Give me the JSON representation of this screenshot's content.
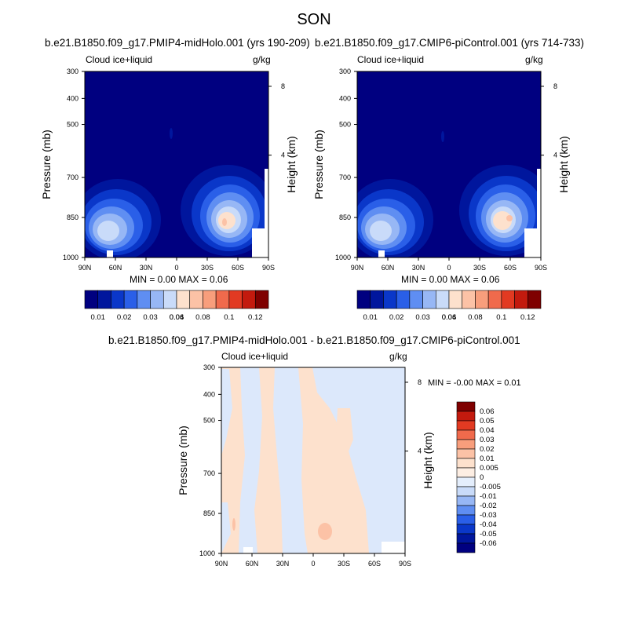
{
  "title": "SON",
  "panel_a": {
    "title": "b.e21.B1850.f09_g17.PMIP4-midHolo.001 (yrs 190-209)",
    "variable": "Cloud ice+liquid",
    "units": "g/kg",
    "ylabel": "Pressure (mb)",
    "ylabel_right": "Height (km)",
    "stats": "MIN =   0.00  MAX =   0.06"
  },
  "panel_b": {
    "title": "b.e21.B1850.f09_g17.CMIP6-piControl.001 (yrs 714-733)",
    "variable": "Cloud ice+liquid",
    "units": "g/kg",
    "ylabel": "Pressure (mb)",
    "ylabel_right": "Height (km)",
    "stats": "MIN =   0.00  MAX =   0.06"
  },
  "panel_c": {
    "title": "b.e21.B1850.f09_g17.PMIP4-midHolo.001 - b.e21.B1850.f09_g17.CMIP6-piControl.001",
    "variable": "Cloud ice+liquid",
    "units": "g/kg",
    "ylabel": "Pressure (mb)",
    "ylabel_right": "Height (km)",
    "stats": "MIN =  -0.00  MAX =   0.01"
  },
  "chart_data": [
    {
      "type": "heatmap",
      "panel": "panel_a",
      "x_ticks": [
        "90N",
        "60N",
        "30N",
        "0",
        "30S",
        "60S",
        "90S"
      ],
      "y_ticks": [
        "300",
        "400",
        "500",
        "700",
        "850",
        "1000"
      ],
      "y_right_ticks": [
        "8",
        "4"
      ],
      "min": 0.0,
      "max": 0.06,
      "features": [
        {
          "lat": 70,
          "pressure": 880,
          "value": 0.035
        },
        {
          "lat": -50,
          "pressure": 850,
          "value": 0.06
        },
        {
          "lat": 12,
          "pressure": 530,
          "value": 0.01
        }
      ],
      "colorbar": {
        "labels": [
          "0.01",
          "0.02",
          "0.03",
          "0.04",
          "0.06",
          "0.08",
          "0.1",
          "0.12"
        ],
        "colors": [
          "#000080",
          "#00169d",
          "#0a37c9",
          "#2a5fe8",
          "#5f8ef2",
          "#97b7f5",
          "#c9dbf9",
          "#fde1cd",
          "#fcc2a6",
          "#f89e7c",
          "#f06a4c",
          "#e23a22",
          "#c31a0e",
          "#7f0000"
        ]
      }
    },
    {
      "type": "heatmap",
      "panel": "panel_b",
      "x_ticks": [
        "90N",
        "60N",
        "30N",
        "0",
        "30S",
        "60S",
        "90S"
      ],
      "y_ticks": [
        "300",
        "400",
        "500",
        "700",
        "850",
        "1000"
      ],
      "y_right_ticks": [
        "8",
        "4"
      ],
      "min": 0.0,
      "max": 0.06,
      "features": [
        {
          "lat": 70,
          "pressure": 880,
          "value": 0.035
        },
        {
          "lat": -50,
          "pressure": 850,
          "value": 0.06
        },
        {
          "lat": 12,
          "pressure": 530,
          "value": 0.01
        }
      ],
      "colorbar": {
        "labels": [
          "0.01",
          "0.02",
          "0.03",
          "0.04",
          "0.06",
          "0.08",
          "0.1",
          "0.12"
        ],
        "colors": [
          "#000080",
          "#00169d",
          "#0a37c9",
          "#2a5fe8",
          "#5f8ef2",
          "#97b7f5",
          "#c9dbf9",
          "#fde1cd",
          "#fcc2a6",
          "#f89e7c",
          "#f06a4c",
          "#e23a22",
          "#c31a0e",
          "#7f0000"
        ]
      }
    },
    {
      "type": "heatmap",
      "panel": "panel_c",
      "x_ticks": [
        "90N",
        "60N",
        "30N",
        "0",
        "30S",
        "60S",
        "90S"
      ],
      "y_ticks": [
        "300",
        "400",
        "500",
        "700",
        "850",
        "1000"
      ],
      "y_right_ticks": [
        "8",
        "4"
      ],
      "min": -0.0,
      "max": 0.01,
      "colorbar": {
        "labels": [
          "0.06",
          "0.05",
          "0.04",
          "0.03",
          "0.02",
          "0.01",
          "0.005",
          "0",
          "-0.005",
          "-0.01",
          "-0.02",
          "-0.03",
          "-0.04",
          "-0.05",
          "-0.06"
        ],
        "colors": [
          "#7f0000",
          "#c31a0e",
          "#e23a22",
          "#f06a4c",
          "#f89e7c",
          "#fcc2a6",
          "#fde1cd",
          "#fdeee3",
          "#e4eefc",
          "#c9dbf9",
          "#97b7f5",
          "#5f8ef2",
          "#2a5fe8",
          "#0a37c9",
          "#00169d",
          "#000080"
        ]
      }
    }
  ]
}
